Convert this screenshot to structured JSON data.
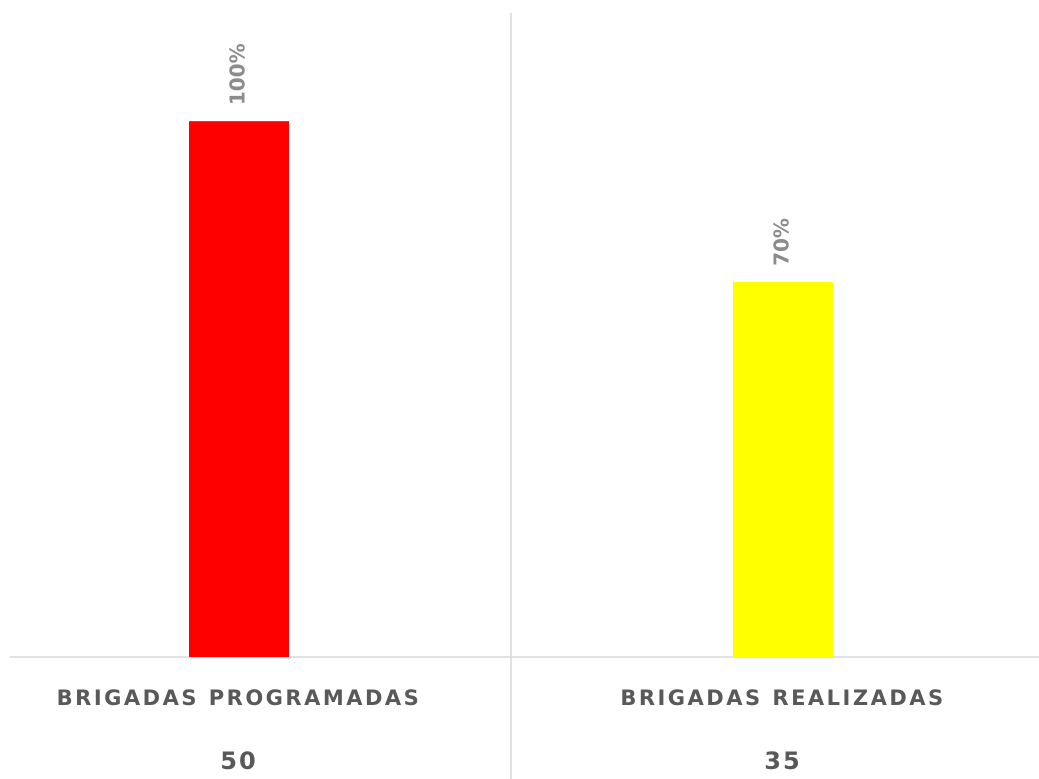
{
  "chart_data": {
    "type": "bar",
    "categories": [
      "BRIGADAS PROGRAMADAS",
      "BRIGADAS REALIZADAS"
    ],
    "counts": [
      "50",
      "35"
    ],
    "values": [
      100,
      70
    ],
    "value_labels": [
      "100%",
      "70%"
    ],
    "colors": [
      "#ff0000",
      "#ffff00"
    ],
    "ylim": [
      0,
      120
    ]
  }
}
